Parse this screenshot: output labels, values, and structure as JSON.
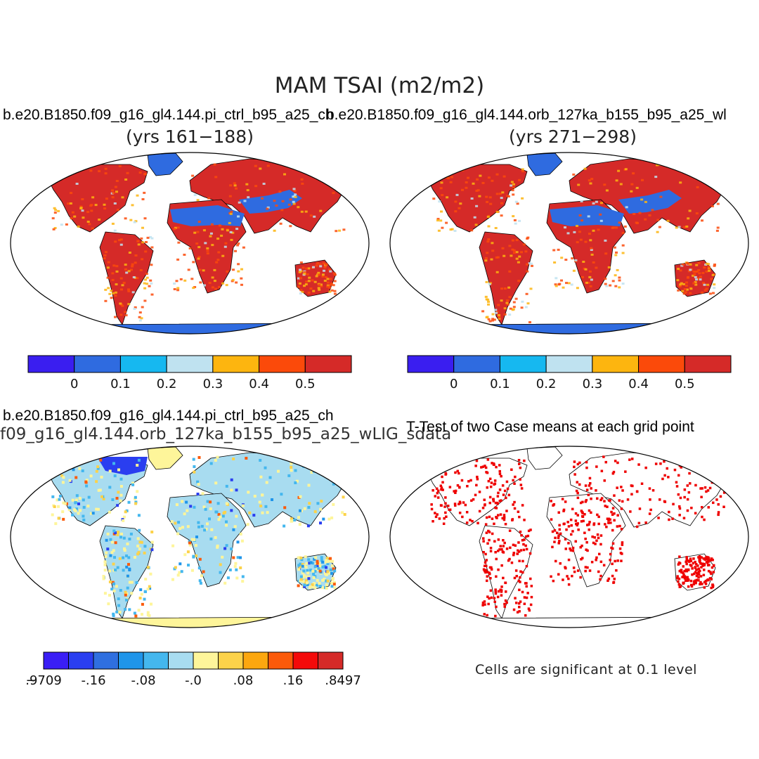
{
  "title": "MAM TSAI (m2/m2)",
  "panels": {
    "ctrl": {
      "case": "b.e20.B1850.f09_g16_gl4.144.pi_ctrl_b95_a25_ch",
      "years": "(yrs 161−188)"
    },
    "orb": {
      "case": "b.e20.B1850.f09_g16_gl4.144.orb_127ka_b155_b95_a25_wl",
      "years": "(yrs 271−298)"
    },
    "diff": {
      "case": "b.e20.B1850.f09_g16_gl4.144.pi_ctrl_b95_a25_ch",
      "subtitle": "f09_g16_gl4.144.orb_127ka_b155_b95_a25_wLIG_sdata"
    },
    "ttest": {
      "title": "T-Test of two Case means at each grid point",
      "note": "Cells are significant at 0.1 level"
    }
  },
  "colorbars": {
    "abs": {
      "colors": [
        "#3a1ef0",
        "#2f6be0",
        "#16b8f0",
        "#bfe2f0",
        "#fdb50f",
        "#fb4a0a",
        "#d52a28"
      ],
      "labels": [
        "0",
        "0.1",
        "0.2",
        "0.3",
        "0.4",
        "0.5"
      ]
    },
    "diff": {
      "colors": [
        "#3a1ef5",
        "#2a3ef0",
        "#2f6fe0",
        "#1f95ea",
        "#44b7ee",
        "#a8dcf0",
        "#fef59a",
        "#fcd24a",
        "#fca70f",
        "#fb5a0a",
        "#f40a0a",
        "#d52a28"
      ],
      "labels": [
        ".9709",
        "-.16",
        "-.08",
        "-.0",
        ".08",
        ".16",
        ".8497"
      ]
    }
  },
  "colors": {
    "significant": "#ee0000",
    "antarctica_abs": "#2f6be0",
    "antarctica_diff": "#fef59a"
  }
}
